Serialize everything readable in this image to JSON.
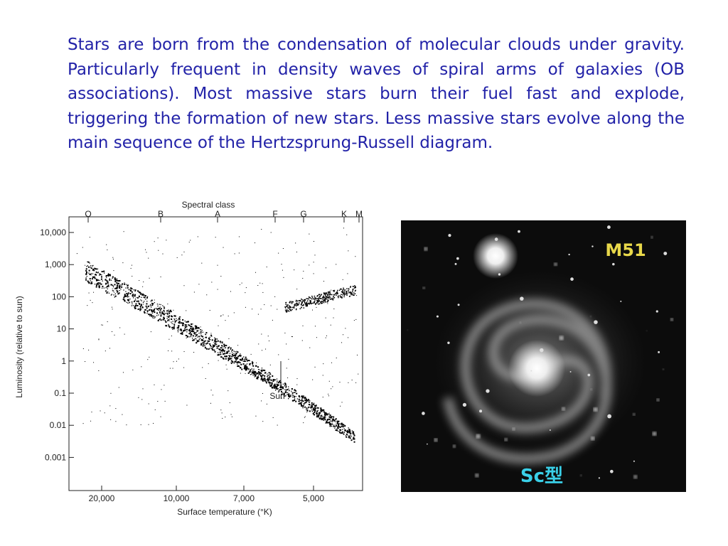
{
  "paragraph": "Stars are born from the condensation of molecular clouds under gravity. Particularly frequent in density waves of spiral arms of galaxies (OB associations). Most massive stars burn their fuel fast and explode, triggering the formation of new stars. Less massive stars evolve along the main sequence of the Hertzsprung-Russell diagram.",
  "hr_diagram": {
    "title": "Spectral class",
    "spectral_classes": [
      "O",
      "B",
      "A",
      "F",
      "G",
      "K",
      "M"
    ],
    "y_ticks": [
      "10,000",
      "1,000",
      "100",
      "10",
      "1",
      "0.1",
      "0.01",
      "0.001"
    ],
    "x_ticks": [
      "20,000",
      "10,000",
      "7,000",
      "5,000"
    ],
    "x_label": "Surface temperature (°K)",
    "y_label": "Luminosity (relative to sun)",
    "sun_label": "Sun"
  },
  "galaxy_image": {
    "name": "M51",
    "type_label": "Sc型"
  }
}
